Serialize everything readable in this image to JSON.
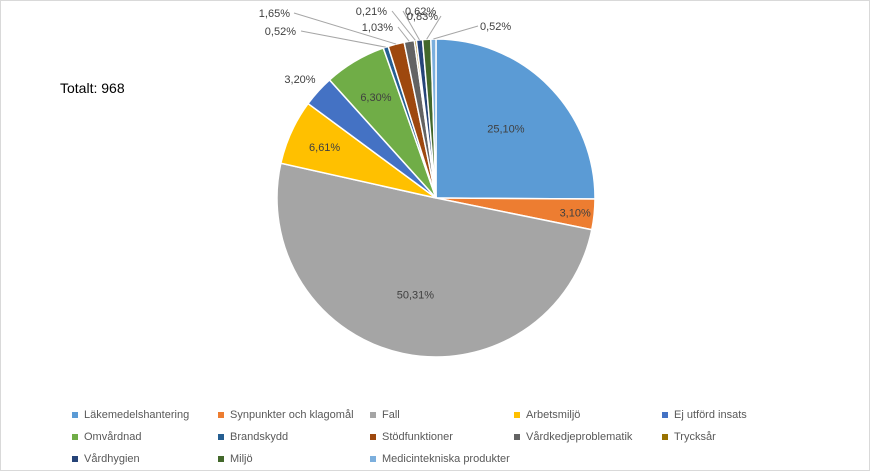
{
  "chart_data": {
    "type": "pie",
    "total_label": "Totalt: 968",
    "categories": [
      "Läkemedelshantering",
      "Synpunkter och klagomål",
      "Fall",
      "Arbetsmiljö",
      "Ej utförd insats",
      "Omvårdnad",
      "Brandskydd",
      "Stödfunktioner",
      "Vårdkedjeproblematik",
      "Trycksår",
      "Vårdhygien",
      "Miljö",
      "Medicintekniska produkter"
    ],
    "values": [
      25.1,
      3.1,
      50.31,
      6.61,
      3.2,
      6.3,
      0.52,
      1.65,
      1.03,
      0.21,
      0.62,
      0.83,
      0.52
    ],
    "value_labels": [
      "25,10%",
      "3,10%",
      "50,31%",
      "6,61%",
      "3,20%",
      "6,30%",
      "0,52%",
      "1,65%",
      "1,03%",
      "0,21%",
      "0,62%",
      "0,83%",
      "0,52%"
    ],
    "colors": [
      "#5b9bd5",
      "#ed7d31",
      "#a5a5a5",
      "#ffc000",
      "#4472c4",
      "#70ad47",
      "#255e91",
      "#9e480e",
      "#636363",
      "#997300",
      "#264478",
      "#43682b",
      "#7cafdd"
    ],
    "legend_position": "bottom",
    "start_angle": "12 o'clock, clockwise"
  }
}
